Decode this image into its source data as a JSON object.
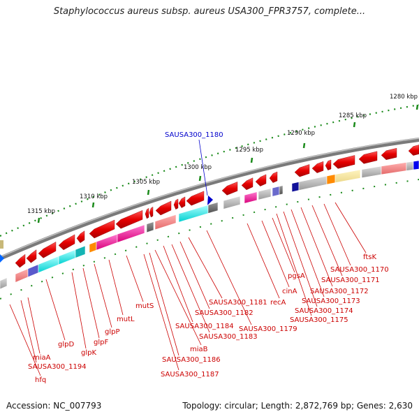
{
  "title": "Staphylococcus aureus subsp. aureus USA300_FPR3757, complete...",
  "footer": {
    "accession": "Accession: NC_007793",
    "summary": "Topology: circular; Length: 2,872,769 bp; Genes: 2,630"
  },
  "highlight_gene": "SAUSA300_1180",
  "kbp_labels": [
    "1280 kbp",
    "1285 kbp",
    "1290 kbp",
    "1295 kbp",
    "1300 kbp",
    "1305 kbp",
    "1310 kbp",
    "1315 kbp"
  ],
  "gene_labels": [
    "ftsK",
    "SAUSA300_1170",
    "SAUSA300_1171",
    "SAUSA300_1172",
    "SAUSA300_1173",
    "SAUSA300_1174",
    "SAUSA300_1175",
    "pgsA",
    "cinA",
    "recA",
    "SAUSA300_1181",
    "SAUSA300_1179",
    "SAUSA300_1182",
    "SAUSA300_1184",
    "SAUSA300_1183",
    "miaB",
    "SAUSA300_1186",
    "SAUSA300_1187",
    "mutS",
    "mutL",
    "glpP",
    "glpF",
    "glpK",
    "glpD",
    "miaA",
    "SAUSA300_1194",
    "hfq"
  ],
  "colors": {
    "gene_forward": "#e60000",
    "highlight": "#0000cc",
    "label": "#cc0000",
    "tick": "#1a8a1a",
    "backbone": "#808080"
  }
}
